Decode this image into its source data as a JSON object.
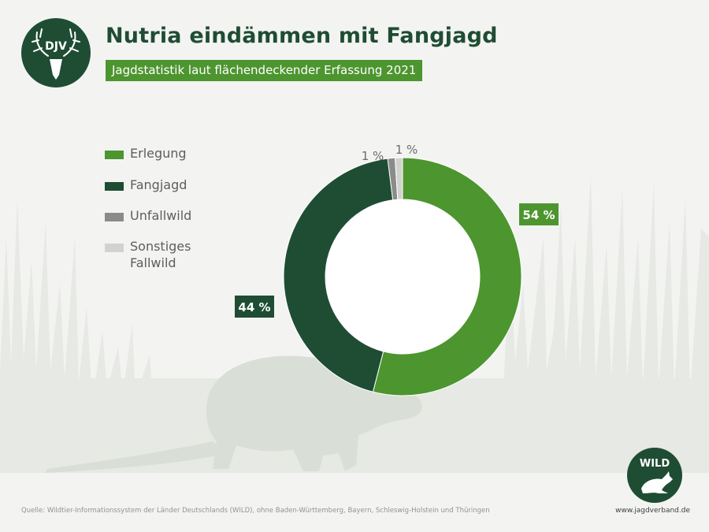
{
  "header": {
    "logo_text": "DJV",
    "title": "Nutria eindämmen mit Fangjagd",
    "subtitle": "Jagdstatistik laut flächendeckender Erfassung 2021"
  },
  "legend": [
    {
      "label_lines": [
        "Erlegung"
      ],
      "color": "#4d952f"
    },
    {
      "label_lines": [
        "Fangjagd"
      ],
      "color": "#1e4d34"
    },
    {
      "label_lines": [
        "Unfallwild"
      ],
      "color": "#8a8c8a"
    },
    {
      "label_lines": [
        "Sonstiges",
        "Fallwild"
      ],
      "color": "#d2d3d1"
    }
  ],
  "chart_data": {
    "type": "pie",
    "categories": [
      "Erlegung",
      "Fangjagd",
      "Unfallwild",
      "Sonstiges Fallwild"
    ],
    "values": [
      54,
      44,
      1,
      1
    ],
    "data_labels": [
      "54 %",
      "44 %",
      "1 %",
      "1 %"
    ],
    "colors": [
      "#4d952f",
      "#1e4d34",
      "#8a8c8a",
      "#d2d3d1"
    ],
    "donut": true,
    "legend_position": "left"
  },
  "footer": {
    "source": "Quelle: Wildtier-Informationssystem der Länder Deutschlands (WILD), ohne Baden-Württemberg, Bayern, Schleswig-Holstein und Thüringen",
    "wild_logo_text": "WILD",
    "url": "www.jagdverband.de"
  }
}
